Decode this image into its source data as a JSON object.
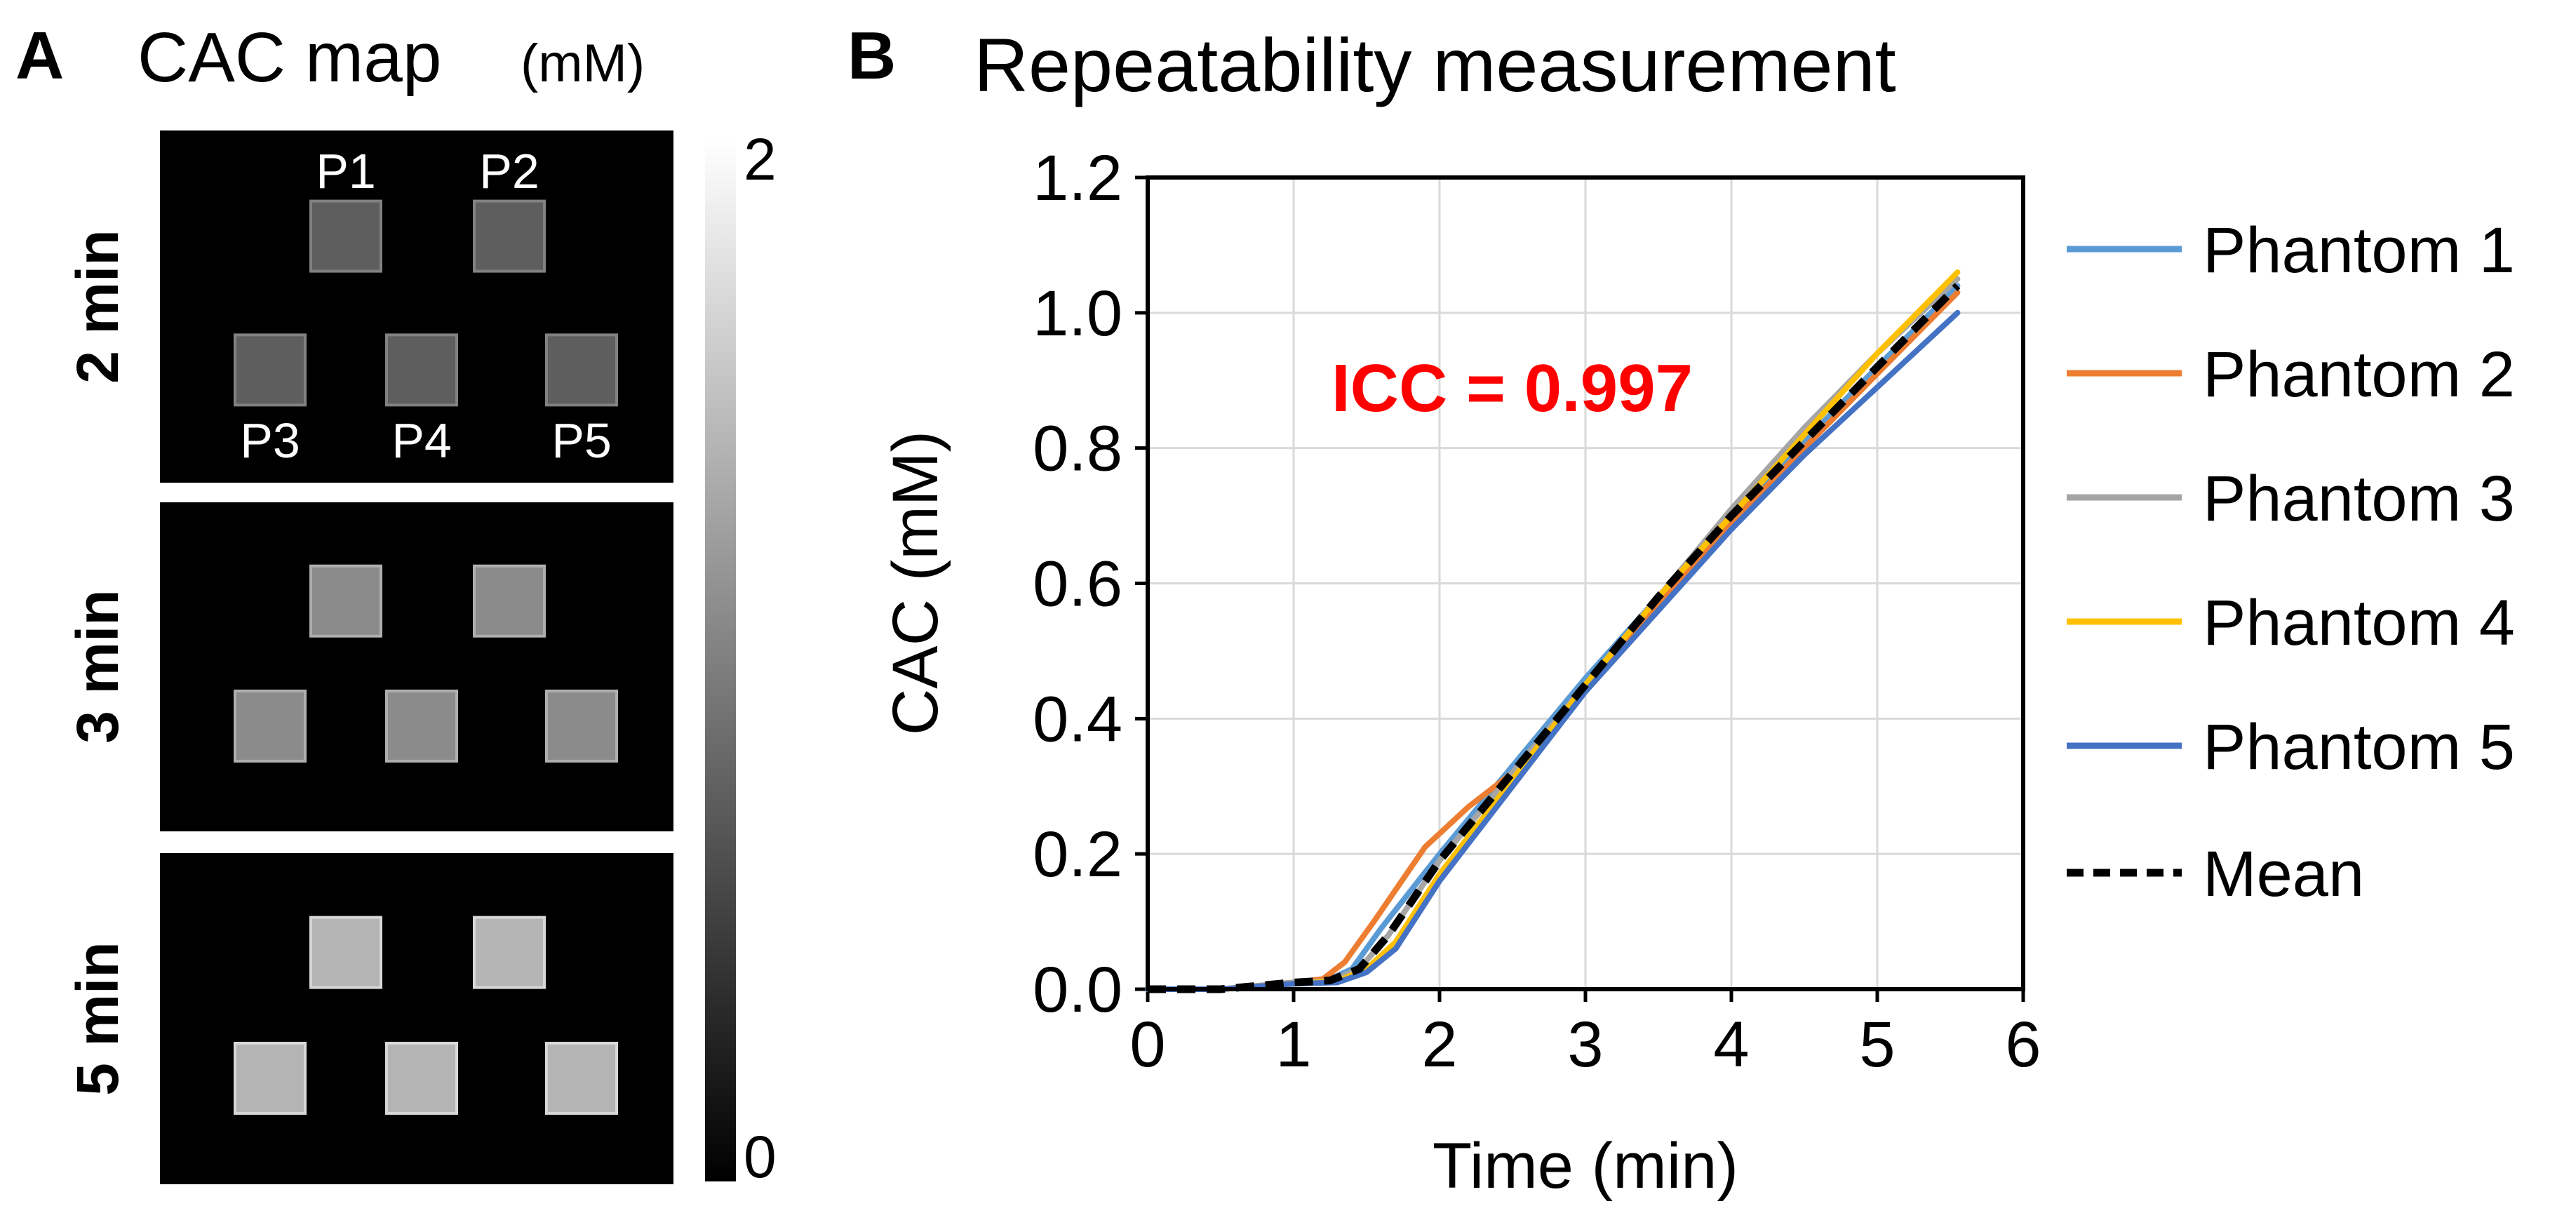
{
  "panel_a": {
    "letter": "A",
    "title": "CAC map",
    "title_unit": "(mM)",
    "rows": [
      {
        "label": "2 min",
        "level": 0.3
      },
      {
        "label": "3 min",
        "level": 0.55
      },
      {
        "label": "5 min",
        "level": 0.78
      }
    ],
    "phantom_labels": [
      "P1",
      "P2",
      "P3",
      "P4",
      "P5"
    ],
    "colorbar": {
      "max_label": "2",
      "min_label": "0"
    }
  },
  "colors": {
    "phantom_1": "#5B9BD5",
    "phantom_2": "#ED7D31",
    "phantom_3": "#A5A5A5",
    "phantom_4": "#FFC000",
    "phantom_5": "#4472C4",
    "mean": "#000000",
    "annotation": "#FF0000",
    "grid": "#D9D9D9"
  },
  "chart_data": {
    "type": "line",
    "letter": "B",
    "title": "Repeatability measurement",
    "xlabel": "Time (min)",
    "ylabel": "CAC (mM)",
    "xlim": [
      0,
      6
    ],
    "ylim": [
      0,
      1.2
    ],
    "x_ticks": [
      0,
      1,
      2,
      3,
      4,
      5,
      6
    ],
    "x_tick_labels": [
      "0",
      "1",
      "2",
      "3",
      "4",
      "5",
      "6"
    ],
    "y_ticks": [
      0,
      0.2,
      0.4,
      0.6,
      0.8,
      1.0,
      1.2
    ],
    "y_tick_labels": [
      "0.0",
      "0.2",
      "0.4",
      "0.6",
      "0.8",
      "1.0",
      "1.2"
    ],
    "grid": true,
    "legend_position": "right",
    "annotation": "ICC = 0.997",
    "series": [
      {
        "name": "Phantom 1",
        "color_key": "phantom_1",
        "dashed": false,
        "x": [
          0,
          0.5,
          1.0,
          1.25,
          1.4,
          1.6,
          2.0,
          2.5,
          3.0,
          3.5,
          4.0,
          4.5,
          5.0,
          5.55
        ],
        "y": [
          0,
          0,
          0.01,
          0.015,
          0.03,
          0.09,
          0.2,
          0.33,
          0.46,
          0.58,
          0.7,
          0.81,
          0.92,
          1.04
        ]
      },
      {
        "name": "Phantom 2",
        "color_key": "phantom_2",
        "dashed": false,
        "x": [
          0,
          0.5,
          1.0,
          1.2,
          1.35,
          1.55,
          1.9,
          2.2,
          2.5,
          3.0,
          3.5,
          4.0,
          4.5,
          5.0,
          5.55
        ],
        "y": [
          0,
          0,
          0.01,
          0.015,
          0.04,
          0.1,
          0.21,
          0.27,
          0.32,
          0.45,
          0.57,
          0.69,
          0.8,
          0.91,
          1.03
        ]
      },
      {
        "name": "Phantom 3",
        "color_key": "phantom_3",
        "dashed": false,
        "x": [
          0,
          0.5,
          1.0,
          1.25,
          1.45,
          1.65,
          2.0,
          2.5,
          3.0,
          3.5,
          4.0,
          4.5,
          5.0,
          5.55
        ],
        "y": [
          0,
          0,
          0.01,
          0.012,
          0.03,
          0.08,
          0.19,
          0.32,
          0.45,
          0.58,
          0.71,
          0.83,
          0.94,
          1.05
        ]
      },
      {
        "name": "Phantom 4",
        "color_key": "phantom_4",
        "dashed": false,
        "x": [
          0,
          0.5,
          1.0,
          1.3,
          1.5,
          1.7,
          2.0,
          2.5,
          3.0,
          3.5,
          4.0,
          4.5,
          5.0,
          5.55
        ],
        "y": [
          0,
          0,
          0.008,
          0.012,
          0.03,
          0.07,
          0.17,
          0.31,
          0.45,
          0.58,
          0.7,
          0.82,
          0.94,
          1.06
        ]
      },
      {
        "name": "Phantom 5",
        "color_key": "phantom_5",
        "dashed": false,
        "x": [
          0,
          0.5,
          1.0,
          1.3,
          1.5,
          1.7,
          2.0,
          2.5,
          3.0,
          3.5,
          4.0,
          4.5,
          5.0,
          5.55
        ],
        "y": [
          0,
          0,
          0.008,
          0.01,
          0.025,
          0.06,
          0.16,
          0.3,
          0.44,
          0.56,
          0.68,
          0.79,
          0.89,
          1.0
        ]
      },
      {
        "name": "Mean",
        "color_key": "mean",
        "dashed": true,
        "x": [
          0,
          0.5,
          1.0,
          1.25,
          1.45,
          1.65,
          2.0,
          2.5,
          3.0,
          3.5,
          4.0,
          4.5,
          5.0,
          5.55
        ],
        "y": [
          0,
          0,
          0.01,
          0.013,
          0.03,
          0.08,
          0.19,
          0.32,
          0.45,
          0.58,
          0.7,
          0.81,
          0.92,
          1.04
        ]
      }
    ]
  }
}
